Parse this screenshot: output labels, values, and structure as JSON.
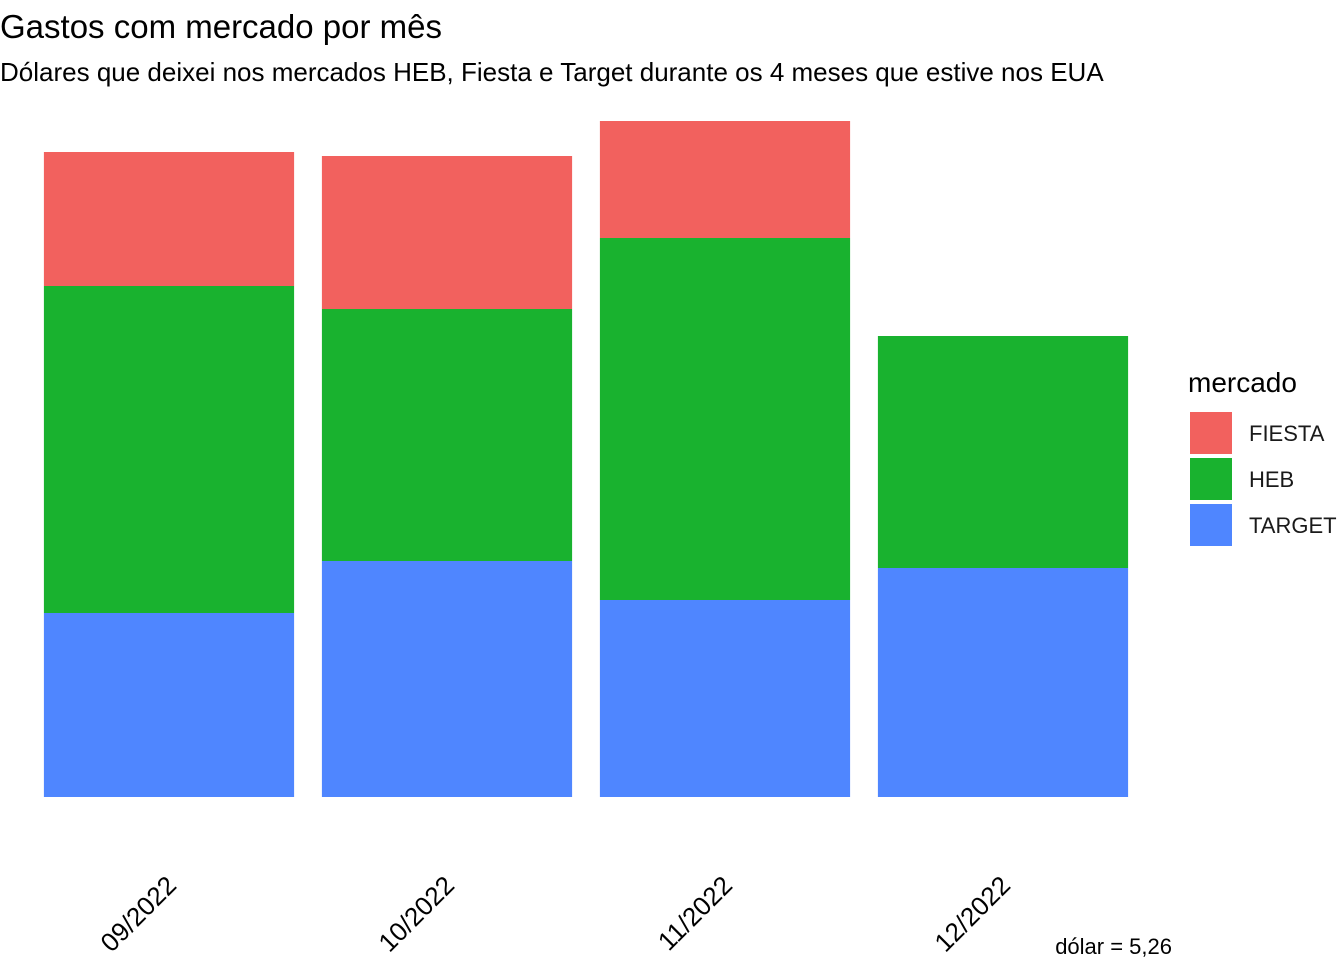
{
  "chart_data": {
    "type": "bar",
    "stacked": true,
    "title": "Gastos com mercado por mês",
    "subtitle": "Dólares que deixei nos mercados HEB, Fiesta e Target durante os 4 meses que estive nos EUA",
    "caption": "dólar = 5,26",
    "xlabel": "",
    "ylabel": "",
    "categories": [
      "09/2022",
      "10/2022",
      "11/2022",
      "12/2022"
    ],
    "series": [
      {
        "name": "TARGET",
        "color": "#4F86FF",
        "values": [
          184,
          236,
          197,
          229
        ]
      },
      {
        "name": "HEB",
        "color": "#19B22F",
        "values": [
          327,
          252,
          362,
          232
        ]
      },
      {
        "name": "FIESTA",
        "color": "#F2615E",
        "values": [
          134,
          153,
          117,
          0
        ]
      }
    ],
    "stack_order_bottom_to_top": [
      "TARGET",
      "HEB",
      "FIESTA"
    ],
    "ylim": [
      0,
      676
    ],
    "grid": false,
    "y_axis_visible": false,
    "legend": {
      "title": "mercado",
      "position": "right",
      "items": [
        "FIESTA",
        "HEB",
        "TARGET"
      ]
    }
  }
}
